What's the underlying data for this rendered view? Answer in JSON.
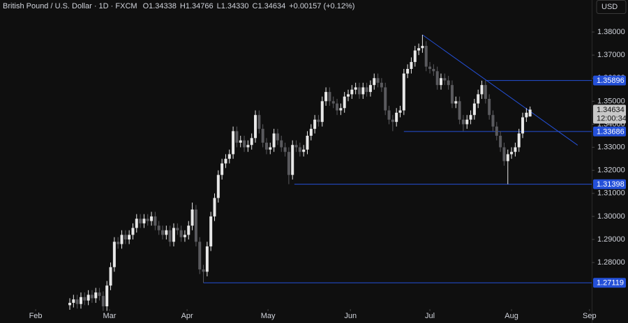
{
  "chart_data": {
    "type": "candlestick",
    "title": "British Pound / U.S. Dollar · 1D · FXCM",
    "ohlc_labels": [
      "O1.34338",
      "H1.34766",
      "L1.34330",
      "C1.34634"
    ],
    "change_label": "+0.00157 (+0.12%)",
    "currency": "USD",
    "up_color": "#e8e8e8",
    "down_color": "#5a5a5e",
    "level_color": "#2450d8",
    "xlim": [
      -18.8,
      140.6
    ],
    "xticks": [
      {
        "value": -9.2,
        "label": "Feb"
      },
      {
        "value": 10.7,
        "label": "Mar"
      },
      {
        "value": 31.6,
        "label": "Apr"
      },
      {
        "value": 53.4,
        "label": "May"
      },
      {
        "value": 75.6,
        "label": "Jun"
      },
      {
        "value": 97,
        "label": "Jul"
      },
      {
        "value": 119,
        "label": "Aug"
      },
      {
        "value": 140,
        "label": "Sep"
      }
    ],
    "ylim": [
      1.2601,
      1.3939
    ],
    "yticks": [
      {
        "value": 1.28,
        "label": "1.28000"
      },
      {
        "value": 1.29,
        "label": "1.29000"
      },
      {
        "value": 1.3,
        "label": "1.30000"
      },
      {
        "value": 1.31,
        "label": "1.31000"
      },
      {
        "value": 1.32,
        "label": "1.32000"
      },
      {
        "value": 1.33,
        "label": "1.33000"
      },
      {
        "value": 1.34,
        "label": "1.34000"
      },
      {
        "value": 1.35,
        "label": "1.35000"
      },
      {
        "value": 1.36,
        "label": "1.36000"
      },
      {
        "value": 1.37,
        "label": "1.37000"
      },
      {
        "value": 1.38,
        "label": "1.38000"
      }
    ],
    "open": [
      1.2615,
      1.2625,
      1.264,
      1.262,
      1.265,
      1.2635,
      1.266,
      1.2645,
      1.267,
      1.2655,
      1.261,
      1.27,
      1.278,
      1.289,
      1.288,
      1.292,
      1.29,
      1.292,
      1.295,
      1.299,
      1.297,
      1.299,
      1.298,
      1.3,
      1.296,
      1.294,
      1.292,
      1.294,
      1.289,
      1.295,
      1.294,
      1.291,
      1.292,
      1.296,
      1.303,
      1.289,
      1.277,
      1.276,
      1.287,
      1.3,
      1.308,
      1.318,
      1.323,
      1.325,
      1.327,
      1.337,
      1.332,
      1.333,
      1.33,
      1.331,
      1.334,
      1.344,
      1.338,
      1.332,
      1.329,
      1.33,
      1.336,
      1.333,
      1.33,
      1.328,
      1.318,
      1.331,
      1.33,
      1.328,
      1.329,
      1.335,
      1.338,
      1.342,
      1.341,
      1.35,
      1.354,
      1.35,
      1.349,
      1.346,
      1.347,
      1.352,
      1.353,
      1.355,
      1.356,
      1.353,
      1.356,
      1.354,
      1.357,
      1.36,
      1.358,
      1.356,
      1.346,
      1.342,
      1.341,
      1.345,
      1.346,
      1.362,
      1.364,
      1.367,
      1.372,
      1.373,
      1.374,
      1.365,
      1.364,
      1.363,
      1.357,
      1.36,
      1.359,
      1.357,
      1.349,
      1.35,
      1.342,
      1.34,
      1.342,
      1.344,
      1.349,
      1.353,
      1.357,
      1.351,
      1.344,
      1.339,
      1.335,
      1.33,
      1.324,
      1.327,
      1.328,
      1.33,
      1.336,
      1.343,
      1.34338
    ],
    "high": [
      1.2645,
      1.266,
      1.266,
      1.267,
      1.267,
      1.268,
      1.268,
      1.269,
      1.269,
      1.2675,
      1.272,
      1.28,
      1.291,
      1.291,
      1.294,
      1.294,
      1.294,
      1.297,
      1.301,
      1.301,
      1.301,
      1.301,
      1.302,
      1.302,
      1.298,
      1.296,
      1.296,
      1.296,
      1.297,
      1.297,
      1.296,
      1.294,
      1.298,
      1.306,
      1.305,
      1.291,
      1.279,
      1.289,
      1.302,
      1.31,
      1.32,
      1.325,
      1.327,
      1.329,
      1.339,
      1.339,
      1.335,
      1.335,
      1.333,
      1.336,
      1.346,
      1.346,
      1.34,
      1.334,
      1.332,
      1.338,
      1.338,
      1.335,
      1.332,
      1.33,
      1.333,
      1.333,
      1.332,
      1.331,
      1.337,
      1.34,
      1.344,
      1.344,
      1.352,
      1.356,
      1.356,
      1.352,
      1.351,
      1.349,
      1.354,
      1.355,
      1.357,
      1.358,
      1.358,
      1.358,
      1.358,
      1.359,
      1.362,
      1.362,
      1.36,
      1.358,
      1.348,
      1.344,
      1.347,
      1.348,
      1.364,
      1.366,
      1.369,
      1.374,
      1.375,
      1.3788,
      1.376,
      1.367,
      1.366,
      1.365,
      1.362,
      1.362,
      1.361,
      1.359,
      1.352,
      1.352,
      1.344,
      1.344,
      1.346,
      1.351,
      1.355,
      1.3589,
      1.359,
      1.353,
      1.346,
      1.341,
      1.337,
      1.332,
      1.329,
      1.33,
      1.332,
      1.338,
      1.345,
      1.347,
      1.34766
    ],
    "low": [
      1.2595,
      1.2605,
      1.26,
      1.26,
      1.2615,
      1.2615,
      1.2625,
      1.2625,
      1.2635,
      1.259,
      1.259,
      1.268,
      1.276,
      1.286,
      1.286,
      1.288,
      1.288,
      1.29,
      1.293,
      1.295,
      1.295,
      1.296,
      1.296,
      1.294,
      1.292,
      1.29,
      1.29,
      1.287,
      1.287,
      1.292,
      1.289,
      1.289,
      1.29,
      1.294,
      1.287,
      1.275,
      1.2712,
      1.274,
      1.285,
      1.298,
      1.306,
      1.316,
      1.321,
      1.323,
      1.325,
      1.33,
      1.33,
      1.328,
      1.328,
      1.329,
      1.332,
      1.336,
      1.33,
      1.327,
      1.327,
      1.328,
      1.331,
      1.328,
      1.326,
      1.314,
      1.316,
      1.328,
      1.326,
      1.326,
      1.327,
      1.333,
      1.336,
      1.339,
      1.339,
      1.348,
      1.348,
      1.347,
      1.344,
      1.344,
      1.345,
      1.35,
      1.351,
      1.353,
      1.351,
      1.351,
      1.352,
      1.352,
      1.355,
      1.356,
      1.354,
      1.344,
      1.34,
      1.337,
      1.339,
      1.343,
      1.344,
      1.36,
      1.362,
      1.365,
      1.37,
      1.371,
      1.363,
      1.362,
      1.361,
      1.355,
      1.355,
      1.357,
      1.355,
      1.347,
      1.347,
      1.34,
      1.337,
      1.338,
      1.34,
      1.342,
      1.347,
      1.351,
      1.349,
      1.342,
      1.337,
      1.333,
      1.328,
      1.322,
      1.314,
      1.325,
      1.326,
      1.328,
      1.334,
      1.341,
      1.3433
    ],
    "close": [
      1.2625,
      1.264,
      1.262,
      1.265,
      1.2635,
      1.266,
      1.2645,
      1.267,
      1.2655,
      1.261,
      1.27,
      1.278,
      1.289,
      1.288,
      1.292,
      1.29,
      1.292,
      1.295,
      1.299,
      1.297,
      1.299,
      1.298,
      1.3,
      1.296,
      1.294,
      1.292,
      1.294,
      1.289,
      1.295,
      1.294,
      1.291,
      1.292,
      1.296,
      1.303,
      1.289,
      1.277,
      1.276,
      1.287,
      1.3,
      1.308,
      1.318,
      1.323,
      1.325,
      1.327,
      1.337,
      1.332,
      1.333,
      1.33,
      1.331,
      1.334,
      1.344,
      1.338,
      1.332,
      1.329,
      1.33,
      1.336,
      1.333,
      1.33,
      1.328,
      1.318,
      1.331,
      1.33,
      1.328,
      1.329,
      1.335,
      1.338,
      1.342,
      1.341,
      1.35,
      1.354,
      1.35,
      1.349,
      1.346,
      1.347,
      1.352,
      1.353,
      1.355,
      1.356,
      1.353,
      1.356,
      1.354,
      1.357,
      1.36,
      1.358,
      1.356,
      1.346,
      1.342,
      1.341,
      1.345,
      1.346,
      1.362,
      1.364,
      1.367,
      1.372,
      1.373,
      1.374,
      1.365,
      1.364,
      1.363,
      1.357,
      1.36,
      1.359,
      1.357,
      1.349,
      1.35,
      1.342,
      1.34,
      1.342,
      1.344,
      1.349,
      1.353,
      1.357,
      1.351,
      1.344,
      1.339,
      1.335,
      1.33,
      1.324,
      1.327,
      1.328,
      1.33,
      1.336,
      1.343,
      1.345,
      1.34634
    ],
    "levels": [
      {
        "value": 1.35896,
        "label": "1.35896",
        "from": 112
      },
      {
        "value": 1.33686,
        "label": "1.33686",
        "from": 90
      },
      {
        "value": 1.31398,
        "label": "1.31398",
        "from": 60.5
      },
      {
        "value": 1.27119,
        "label": "1.27119",
        "from": 36
      }
    ],
    "trendline": {
      "x": [
        95,
        136.8
      ],
      "y": [
        1.3788,
        1.3309
      ]
    },
    "current_price": {
      "value": 1.34634,
      "label": "1.34634"
    },
    "countdown": "12:00:34"
  }
}
